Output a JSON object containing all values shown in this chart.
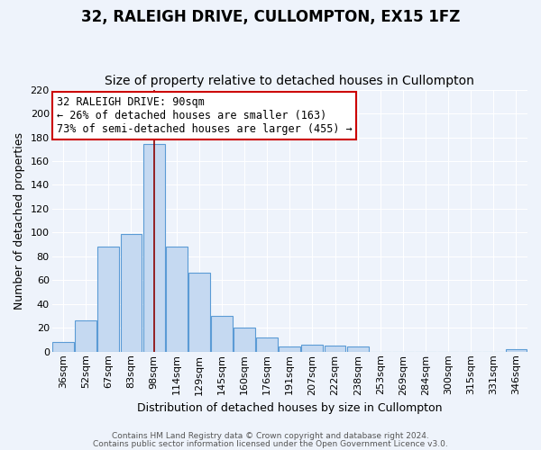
{
  "title": "32, RALEIGH DRIVE, CULLOMPTON, EX15 1FZ",
  "subtitle": "Size of property relative to detached houses in Cullompton",
  "xlabel": "Distribution of detached houses by size in Cullompton",
  "ylabel": "Number of detached properties",
  "bar_labels": [
    "36sqm",
    "52sqm",
    "67sqm",
    "83sqm",
    "98sqm",
    "114sqm",
    "129sqm",
    "145sqm",
    "160sqm",
    "176sqm",
    "191sqm",
    "207sqm",
    "222sqm",
    "238sqm",
    "253sqm",
    "269sqm",
    "284sqm",
    "300sqm",
    "315sqm",
    "331sqm",
    "346sqm"
  ],
  "bar_values": [
    8,
    26,
    88,
    99,
    174,
    88,
    66,
    30,
    20,
    12,
    4,
    6,
    5,
    4,
    0,
    0,
    0,
    0,
    0,
    0,
    2
  ],
  "bar_color": "#c5d9f1",
  "bar_edge_color": "#5b9bd5",
  "ylim": [
    0,
    220
  ],
  "yticks": [
    0,
    20,
    40,
    60,
    80,
    100,
    120,
    140,
    160,
    180,
    200,
    220
  ],
  "marker_label": "32 RALEIGH DRIVE: 90sqm",
  "annotation_line1": "← 26% of detached houses are smaller (163)",
  "annotation_line2": "73% of semi-detached houses are larger (455) →",
  "footer1": "Contains HM Land Registry data © Crown copyright and database right 2024.",
  "footer2": "Contains public sector information licensed under the Open Government Licence v3.0.",
  "bg_color": "#eef3fb",
  "plot_bg_color": "#eef3fb",
  "grid_color": "#ffffff",
  "title_fontsize": 12,
  "subtitle_fontsize": 10,
  "axis_label_fontsize": 9,
  "tick_fontsize": 8,
  "annotation_fontsize": 8.5
}
